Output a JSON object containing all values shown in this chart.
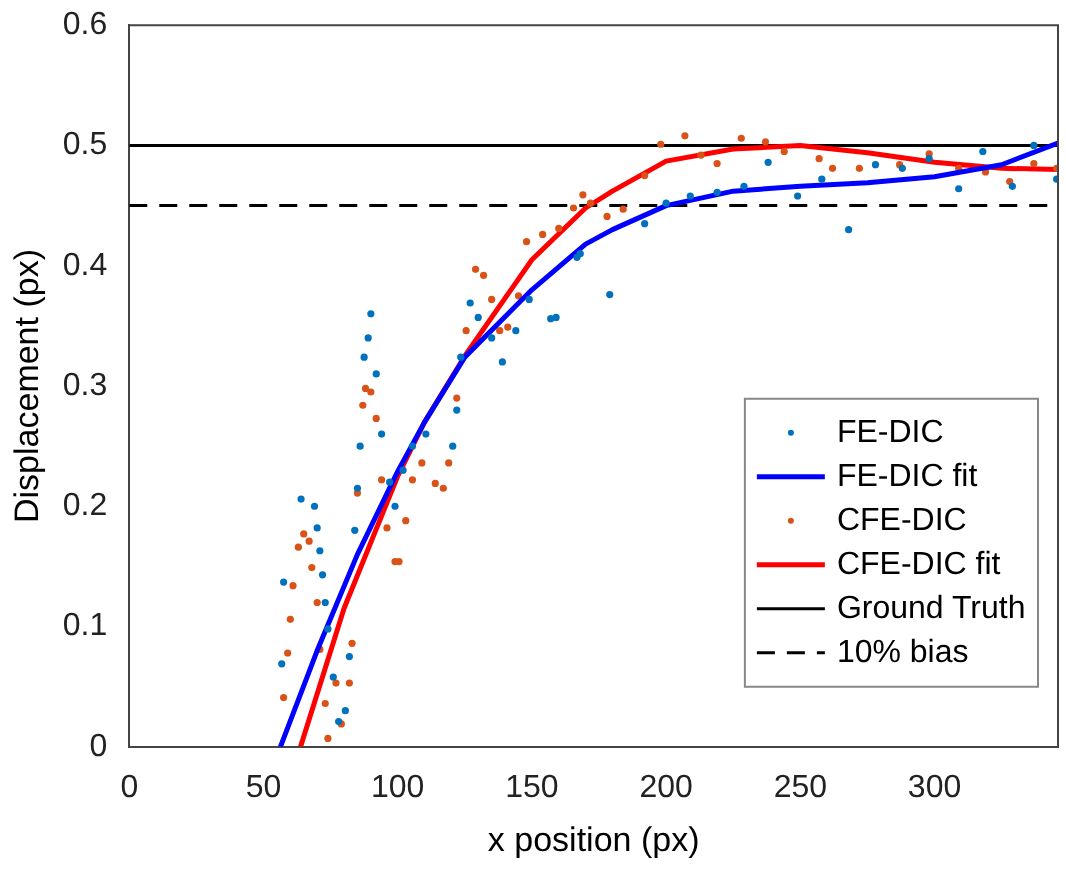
{
  "chart_data": {
    "type": "scatter",
    "xlabel": "x position (px)",
    "ylabel": "Displacement (px)",
    "xlim": [
      0,
      346
    ],
    "xticks": [
      0,
      50,
      100,
      150,
      200,
      250,
      300
    ],
    "ylim": [
      0,
      0.6
    ],
    "yticks": [
      0,
      0.1,
      0.2,
      0.3,
      0.4,
      0.5,
      0.6
    ],
    "grid": false,
    "legend": "bottom right",
    "series": [
      {
        "name": "FE-DIC",
        "marker": "circle",
        "color": "#0072bd",
        "x": [
          56.8,
          57.5,
          64,
          69,
          70,
          71,
          72,
          73,
          74,
          76,
          78,
          80.5,
          82,
          84,
          85,
          86,
          87.5,
          89,
          90,
          92,
          94,
          97,
          99,
          102,
          105.5,
          110.5,
          120.5,
          122,
          123.5,
          127,
          130,
          135,
          139,
          144,
          149,
          157,
          159,
          166.8,
          168,
          179,
          192,
          200,
          209,
          219,
          229,
          238,
          249,
          258,
          268,
          278,
          288,
          298,
          309,
          318,
          329,
          337,
          345.5
        ],
        "values": [
          0.069,
          0.137,
          0.206,
          0.2,
          0.182,
          0.163,
          0.143,
          0.12,
          0.098,
          0.058,
          0.021,
          0.03,
          0.075,
          0.18,
          0.215,
          0.25,
          0.324,
          0.34,
          0.36,
          0.31,
          0.26,
          0.22,
          0.2,
          0.23,
          0.25,
          0.26,
          0.25,
          0.28,
          0.324,
          0.369,
          0.357,
          0.34,
          0.32,
          0.346,
          0.372,
          0.356,
          0.357,
          0.407,
          0.41,
          0.376,
          0.435,
          0.452,
          0.458,
          0.461,
          0.466,
          0.486,
          0.458,
          0.472,
          0.43,
          0.484,
          0.481,
          0.489,
          0.464,
          0.495,
          0.466,
          0.5,
          0.472
        ]
      },
      {
        "name": "FE-DIC fit",
        "type": "line",
        "marker": "none",
        "color": "#0000ff",
        "x": [
          56.3,
          70,
          85,
          100,
          110,
          125,
          150,
          170,
          180,
          200,
          225,
          250,
          275,
          300,
          325,
          346
        ],
        "values": [
          0,
          0.08,
          0.16,
          0.229,
          0.27,
          0.324,
          0.38,
          0.418,
          0.43,
          0.45,
          0.462,
          0.466,
          0.469,
          0.474,
          0.484,
          0.502
        ]
      },
      {
        "name": "CFE-DIC",
        "marker": "circle",
        "color": "#d95319",
        "x": [
          57.5,
          59,
          60,
          61,
          63,
          65,
          67,
          68,
          70,
          71,
          73,
          74,
          77,
          79,
          82,
          83,
          85,
          87,
          88,
          90,
          92,
          94,
          96,
          99,
          100.5,
          103,
          105.5,
          109,
          114,
          117,
          119,
          122,
          125.5,
          129,
          132,
          135,
          138,
          141,
          145,
          148,
          154,
          160,
          165.5,
          169,
          171.8,
          178,
          184,
          192,
          198,
          207,
          213,
          219,
          228,
          237,
          244,
          257,
          262,
          272,
          287,
          298,
          309,
          319,
          328,
          337,
          345.5
        ],
        "values": [
          0.041,
          0.078,
          0.106,
          0.134,
          0.166,
          0.177,
          0.171,
          0.149,
          0.12,
          0.081,
          0.036,
          0.007,
          0.053,
          0.019,
          0.053,
          0.086,
          0.211,
          0.284,
          0.298,
          0.295,
          0.273,
          0.222,
          0.182,
          0.154,
          0.154,
          0.188,
          0.222,
          0.236,
          0.219,
          0.215,
          0.236,
          0.29,
          0.346,
          0.397,
          0.392,
          0.372,
          0.346,
          0.349,
          0.375,
          0.42,
          0.426,
          0.431,
          0.448,
          0.459,
          0.452,
          0.441,
          0.447,
          0.475,
          0.501,
          0.508,
          0.492,
          0.485,
          0.506,
          0.503,
          0.495,
          0.489,
          0.481,
          0.481,
          0.484,
          0.493,
          0.481,
          0.478,
          0.47,
          0.485,
          0.481
        ]
      },
      {
        "name": "CFE-DIC fit",
        "type": "line",
        "marker": "none",
        "color": "#ff0000",
        "x": [
          63.8,
          80,
          100,
          110,
          125,
          150,
          170,
          180,
          200,
          225,
          250,
          275,
          300,
          325,
          346
        ],
        "values": [
          0,
          0.115,
          0.225,
          0.27,
          0.325,
          0.405,
          0.448,
          0.462,
          0.487,
          0.497,
          0.5,
          0.494,
          0.486,
          0.481,
          0.48
        ]
      }
    ],
    "ref_lines": [
      {
        "axis": "y",
        "value": 0.5,
        "label": "Ground Truth",
        "color": "#000000",
        "line_style": "solid"
      },
      {
        "axis": "y",
        "value": 0.45,
        "label": "10% bias",
        "color": "#000000",
        "line_style": "dashed"
      }
    ]
  }
}
